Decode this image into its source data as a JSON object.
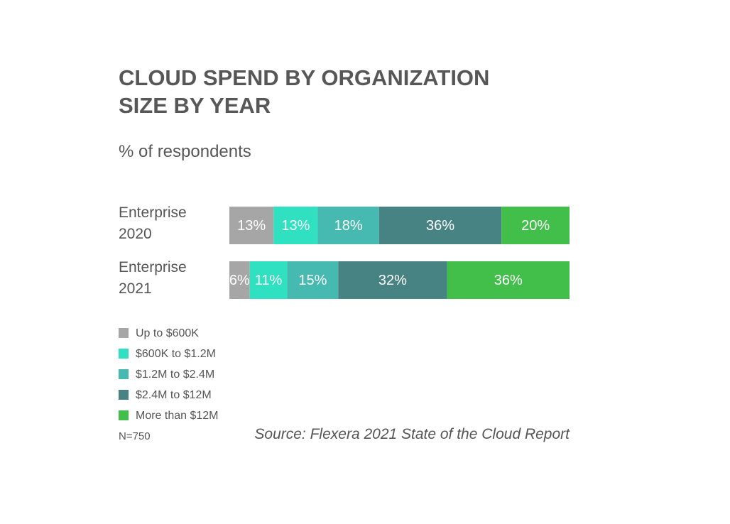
{
  "chart_data": {
    "type": "stacked-bar",
    "orientation": "horizontal",
    "title": "CLOUD SPEND BY ORGANIZATION SIZE BY YEAR",
    "subtitle": "% of respondents",
    "categories": [
      "Enterprise 2020",
      "Enterprise 2021"
    ],
    "series": [
      {
        "name": "Up to $600K",
        "color": "#a6a6a6",
        "values": [
          13,
          6
        ],
        "value_labels": [
          "13%",
          "6%"
        ]
      },
      {
        "name": "$600K to $1.2M",
        "color": "#2fe0c1",
        "values": [
          13,
          11
        ],
        "value_labels": [
          "13%",
          "11%"
        ]
      },
      {
        "name": "$1.2M to $2.4M",
        "color": "#46b9b1",
        "values": [
          18,
          15
        ],
        "value_labels": [
          "18%",
          "15%"
        ]
      },
      {
        "name": "$2.4M to $12M",
        "color": "#488384",
        "values": [
          36,
          32
        ],
        "value_labels": [
          "36%",
          "32%"
        ]
      },
      {
        "name": "More than $12M",
        "color": "#42bf4a",
        "values": [
          20,
          36
        ],
        "value_labels": [
          "20%",
          "36%"
        ]
      }
    ],
    "note": "N=750",
    "source": "Source: Flexera 2021 State of the Cloud Report"
  }
}
